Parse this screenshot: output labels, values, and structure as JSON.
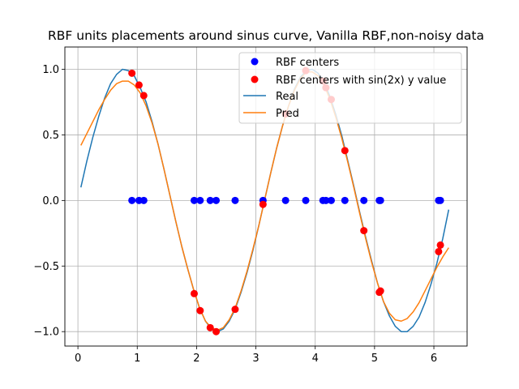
{
  "chart_data": {
    "type": "scatter+line",
    "title": "RBF units placements around sinus curve, Vanilla RBF,non-noisy data",
    "xlabel": "",
    "ylabel": "",
    "xlim": [
      -0.22,
      6.56
    ],
    "ylim": [
      -1.11,
      1.17
    ],
    "x_ticks": [
      0,
      1,
      2,
      3,
      4,
      5,
      6
    ],
    "x_tick_labels": [
      "0",
      "1",
      "2",
      "3",
      "4",
      "5",
      "6"
    ],
    "y_ticks": [
      -1.0,
      -0.5,
      0.0,
      0.5,
      1.0
    ],
    "y_tick_labels": [
      "−1.0",
      "−0.5",
      "0.0",
      "0.5",
      "1.0"
    ],
    "grid": true,
    "legend": {
      "placement": "upper-right",
      "entries": [
        "RBF centers",
        "RBF centers with sin(2x) y value",
        "Real",
        "Pred"
      ]
    },
    "colors": {
      "centers": "#0000ff",
      "centers_sin": "#ff0000",
      "real": "#1f77b4",
      "pred": "#ff7f0e"
    },
    "series": [
      {
        "name": "RBF centers",
        "kind": "scatter",
        "x": [
          0.91,
          1.03,
          1.11,
          1.96,
          2.06,
          2.23,
          2.33,
          2.65,
          3.12,
          3.5,
          3.84,
          4.13,
          4.18,
          4.27,
          4.5,
          4.82,
          5.08,
          5.1,
          6.08,
          6.11
        ],
        "y": [
          0,
          0,
          0,
          0,
          0,
          0,
          0,
          0,
          0,
          0,
          0,
          0,
          0,
          0,
          0,
          0,
          0,
          0,
          0,
          0
        ]
      },
      {
        "name": "RBF centers with sin(2x) y value",
        "kind": "scatter",
        "x": [
          0.91,
          1.03,
          1.11,
          1.96,
          2.06,
          2.23,
          2.33,
          2.65,
          3.12,
          3.5,
          3.84,
          4.13,
          4.18,
          4.27,
          4.5,
          4.82,
          5.08,
          5.1,
          6.08,
          6.11
        ],
        "y": [
          0.97,
          0.88,
          0.8,
          -0.71,
          -0.84,
          -0.97,
          -1.0,
          -0.83,
          -0.03,
          0.66,
          0.99,
          0.91,
          0.86,
          0.77,
          0.38,
          -0.23,
          -0.7,
          -0.69,
          -0.39,
          -0.34
        ]
      },
      {
        "name": "Real",
        "kind": "line",
        "x": [
          0.05,
          0.15,
          0.25,
          0.35,
          0.45,
          0.55,
          0.65,
          0.75,
          0.85,
          0.95,
          1.05,
          1.15,
          1.25,
          1.35,
          1.45,
          1.55,
          1.65,
          1.75,
          1.85,
          1.95,
          2.05,
          2.15,
          2.25,
          2.35,
          2.45,
          2.55,
          2.65,
          2.75,
          2.85,
          2.95,
          3.05,
          3.15,
          3.25,
          3.35,
          3.45,
          3.55,
          3.65,
          3.75,
          3.85,
          3.95,
          4.05,
          4.15,
          4.25,
          4.35,
          4.45,
          4.55,
          4.65,
          4.75,
          4.85,
          4.95,
          5.05,
          5.15,
          5.25,
          5.35,
          5.45,
          5.55,
          5.65,
          5.75,
          5.85,
          5.95,
          6.05,
          6.15,
          6.25
        ],
        "y": [
          0.1,
          0.3,
          0.48,
          0.64,
          0.78,
          0.89,
          0.96,
          1.0,
          0.99,
          0.95,
          0.86,
          0.75,
          0.6,
          0.43,
          0.24,
          0.04,
          -0.16,
          -0.35,
          -0.52,
          -0.68,
          -0.82,
          -0.92,
          -0.98,
          -1.0,
          -0.98,
          -0.92,
          -0.83,
          -0.7,
          -0.55,
          -0.38,
          -0.19,
          0.01,
          0.21,
          0.4,
          0.57,
          0.72,
          0.85,
          0.94,
          0.99,
          1.0,
          0.97,
          0.9,
          0.79,
          0.65,
          0.49,
          0.3,
          0.11,
          -0.09,
          -0.28,
          -0.46,
          -0.63,
          -0.77,
          -0.88,
          -0.96,
          -1.0,
          -1.0,
          -0.96,
          -0.89,
          -0.78,
          -0.64,
          -0.48,
          -0.29,
          -0.07
        ]
      },
      {
        "name": "Pred",
        "kind": "line",
        "x": [
          0.05,
          0.15,
          0.25,
          0.35,
          0.45,
          0.55,
          0.65,
          0.75,
          0.85,
          0.95,
          1.05,
          1.15,
          1.25,
          1.35,
          1.45,
          1.55,
          1.65,
          1.75,
          1.85,
          1.95,
          2.05,
          2.15,
          2.25,
          2.35,
          2.45,
          2.55,
          2.65,
          2.75,
          2.85,
          2.95,
          3.05,
          3.15,
          3.25,
          3.35,
          3.45,
          3.55,
          3.65,
          3.75,
          3.85,
          3.95,
          4.05,
          4.15,
          4.25,
          4.35,
          4.45,
          4.55,
          4.65,
          4.75,
          4.85,
          4.95,
          5.05,
          5.15,
          5.25,
          5.35,
          5.45,
          5.55,
          5.65,
          5.75,
          5.85,
          5.95,
          6.05,
          6.15,
          6.25
        ],
        "y": [
          0.42,
          0.51,
          0.6,
          0.69,
          0.77,
          0.84,
          0.89,
          0.91,
          0.91,
          0.88,
          0.82,
          0.72,
          0.59,
          0.43,
          0.24,
          0.04,
          -0.16,
          -0.35,
          -0.52,
          -0.68,
          -0.82,
          -0.92,
          -0.97,
          -0.99,
          -0.97,
          -0.91,
          -0.82,
          -0.69,
          -0.54,
          -0.37,
          -0.19,
          0.01,
          0.21,
          0.4,
          0.57,
          0.72,
          0.84,
          0.93,
          0.98,
          0.98,
          0.95,
          0.88,
          0.77,
          0.63,
          0.47,
          0.29,
          0.1,
          -0.1,
          -0.29,
          -0.47,
          -0.63,
          -0.77,
          -0.86,
          -0.91,
          -0.92,
          -0.9,
          -0.85,
          -0.78,
          -0.69,
          -0.6,
          -0.51,
          -0.43,
          -0.36
        ]
      }
    ]
  }
}
